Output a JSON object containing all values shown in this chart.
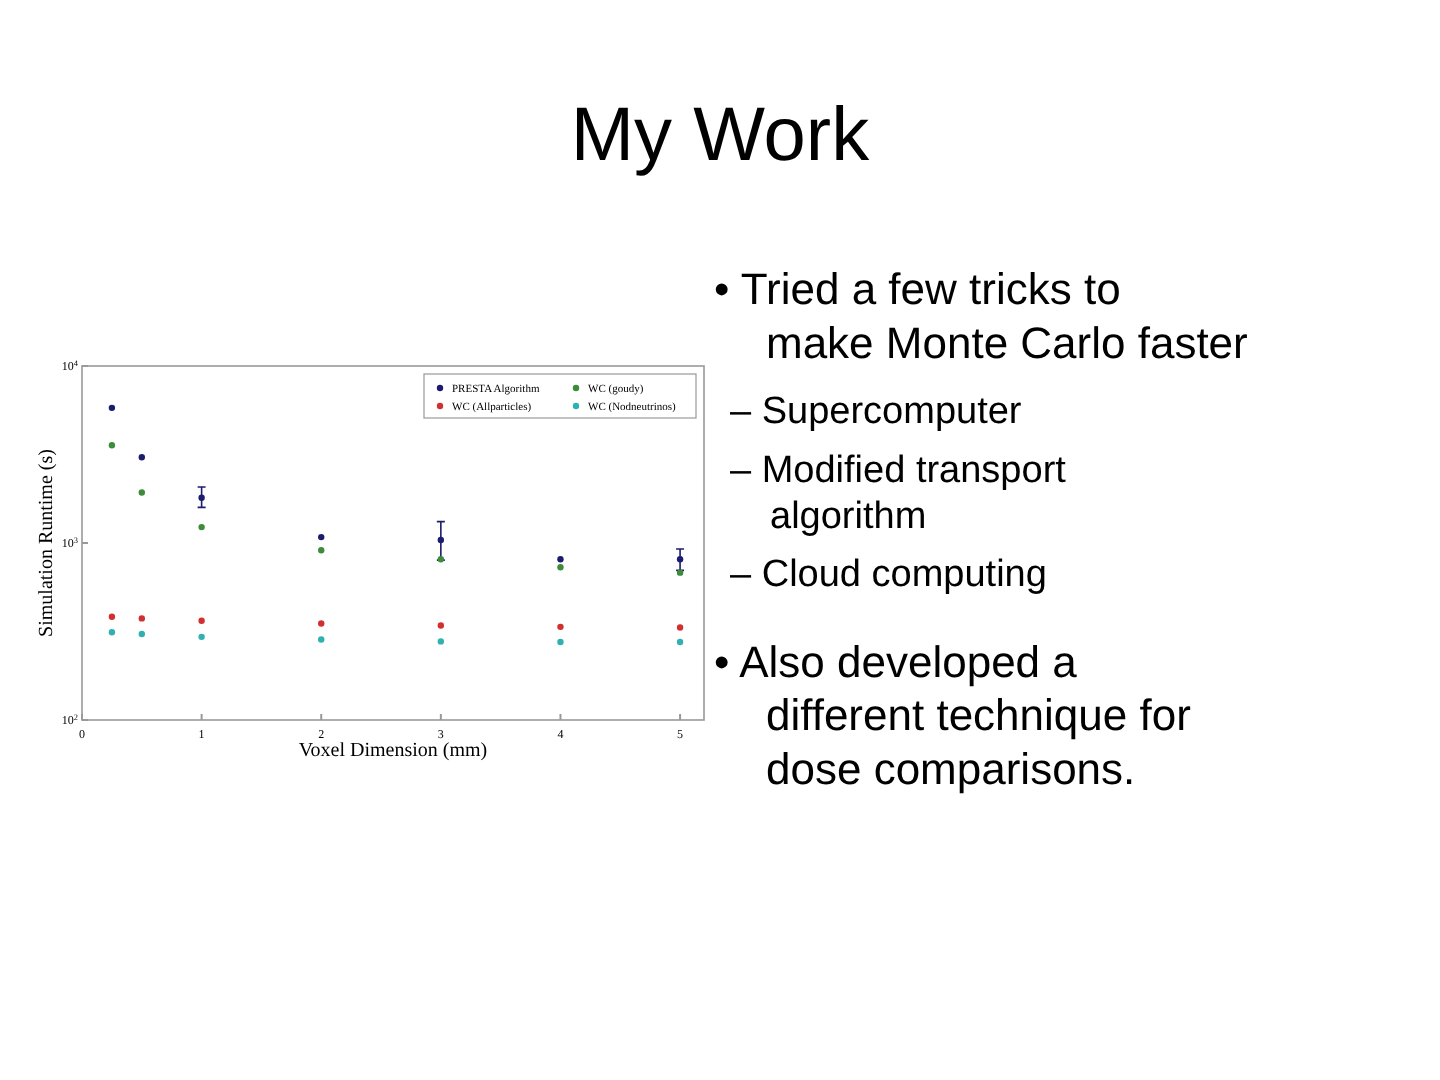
{
  "chart_data": {
    "type": "scatter",
    "title": "My Work",
    "xlabel": "Voxel Dimension (mm)",
    "ylabel": "Simulation Runtime (s)",
    "x": [
      0.25,
      0.5,
      1,
      2,
      3,
      4,
      5
    ],
    "series": [
      {
        "name": "PRESTA Algorithm",
        "color": "#1c1c6e",
        "values": [
          5800,
          3050,
          1800,
          1080,
          1040,
          810,
          810
        ],
        "errors": [
          null,
          null,
          [
            1590,
            2070
          ],
          null,
          [
            800,
            1320
          ],
          null,
          [
            700,
            925
          ]
        ]
      },
      {
        "name": "WC (goudy)",
        "color": "#3c8c3c",
        "values": [
          3570,
          1930,
          1230,
          910,
          810,
          730,
          680
        ]
      },
      {
        "name": "WC (Allparticles)",
        "color": "#d03030",
        "values": [
          383,
          375,
          364,
          351,
          342,
          336,
          333
        ]
      },
      {
        "name": "WC (Nodneutrinos)",
        "color": "#30b0b0",
        "values": [
          313,
          306,
          295,
          285,
          278,
          276,
          276
        ]
      }
    ],
    "xlim": [
      0,
      5.2
    ],
    "xticks": [
      0,
      1,
      2,
      3,
      4,
      5
    ],
    "ylim": [
      100,
      10000
    ],
    "yticks": [
      {
        "value": 100,
        "label": "10$^{2}$"
      },
      {
        "value": 1000,
        "label": "10$^{3}$"
      },
      {
        "value": 10000,
        "label": "10$^{4}$"
      }
    ],
    "log": "y",
    "grid": false,
    "legend": "top right",
    "marker": "circle",
    "annotations": [
      "• Tried a few tricks to make Monte Carlo faster",
      "– Supercomputer",
      "– Modified transport algorithm",
      "– Cloud computing",
      "• Also developed a different technique for dose comparisons."
    ]
  }
}
